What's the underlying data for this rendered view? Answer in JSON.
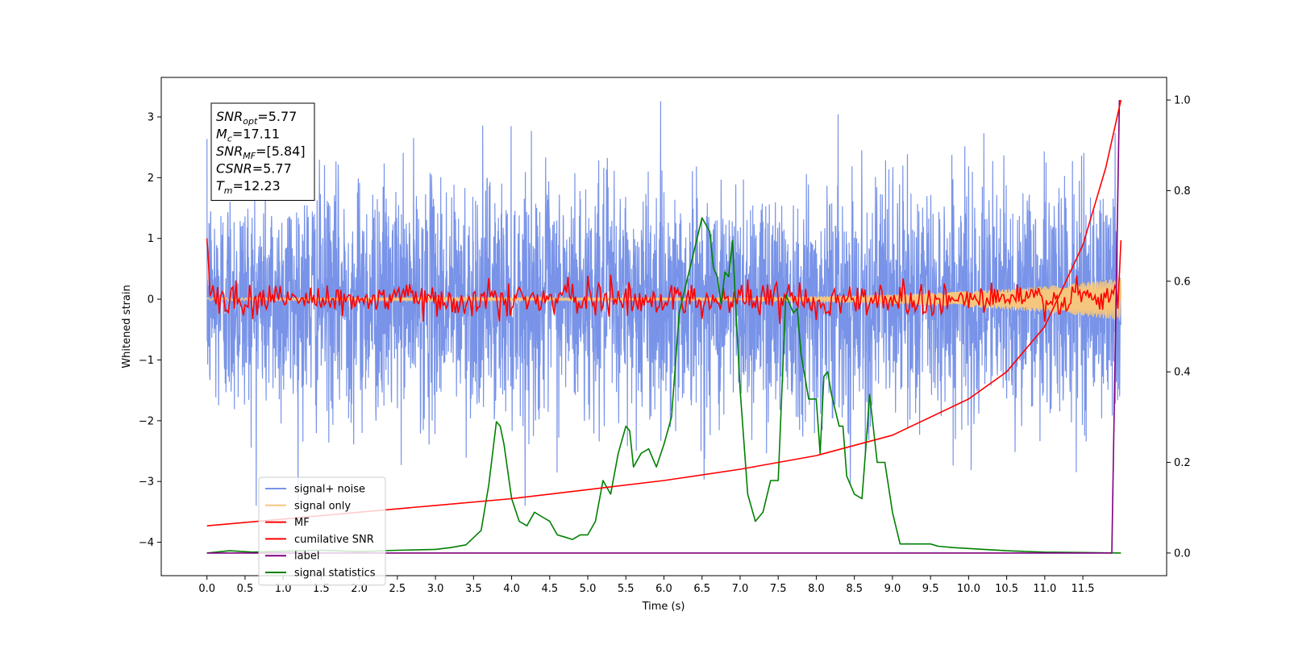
{
  "chart_data": {
    "type": "line",
    "xlabel": "Time (s)",
    "ylabel": "Whitened strain",
    "xlim": [
      -0.6,
      12.6
    ],
    "ylim": [
      -4.55,
      3.65
    ],
    "y2lim": [
      -0.05,
      1.05
    ],
    "x_ticks": [
      "0.0",
      "0.5",
      "1.0",
      "1.5",
      "2.0",
      "2.5",
      "3.0",
      "3.5",
      "4.0",
      "4.5",
      "5.0",
      "5.5",
      "6.0",
      "6.5",
      "7.0",
      "7.5",
      "8.0",
      "8.5",
      "9.0",
      "9.5",
      "10.0",
      "10.5",
      "11.0",
      "11.5"
    ],
    "y_ticks": [
      "3",
      "2",
      "1",
      "0",
      "−1",
      "−2",
      "−3",
      "−4"
    ],
    "y2_ticks": [
      "1.0",
      "0.8",
      "0.6",
      "0.4",
      "0.2",
      "0.0"
    ],
    "annotation": {
      "lines": [
        {
          "base": "SNR",
          "sub": "opt",
          "value": "=5.77"
        },
        {
          "base": "M",
          "sub": "c",
          "value": "=17.11"
        },
        {
          "base": "SNR",
          "sub": "MF",
          "value": "=[5.84]"
        },
        {
          "base": "CSNR",
          "sub": "",
          "value": "=5.77"
        },
        {
          "base": "T",
          "sub": "m",
          "value": "=12.23"
        }
      ]
    },
    "legend": {
      "placement": "lower-left",
      "entries": [
        {
          "label": "signal+ noise",
          "color": "#7893e8"
        },
        {
          "label": "signal only",
          "color": "#f5c77e"
        },
        {
          "label": "MF",
          "color": "#ff0000"
        },
        {
          "label": "cumilative SNR",
          "color": "#ff0000"
        },
        {
          "label": "label",
          "color": "#800080"
        },
        {
          "label": "signal statistics",
          "color": "#008000"
        }
      ]
    },
    "series": [
      {
        "name": "signal+ noise",
        "axis": "left",
        "color": "#7893e8",
        "t_range": [
          0.0,
          12.0
        ],
        "amplitude_std": 0.95,
        "amplitude_max": 3.4
      },
      {
        "name": "signal only",
        "axis": "left",
        "color": "#f5c77e",
        "t_range": [
          0.0,
          12.0
        ],
        "envelope_start": 0.02,
        "envelope_end": 0.35
      },
      {
        "name": "MF",
        "axis": "left",
        "color": "#ff0000",
        "t_range": [
          0.0,
          12.0
        ],
        "start_value": 1.0,
        "end_value": 0.97,
        "amplitude_std": 0.14
      },
      {
        "name": "cumilative SNR",
        "axis": "right",
        "color": "#ff0000",
        "x": [
          0.0,
          1.0,
          2.0,
          3.0,
          4.0,
          5.0,
          6.0,
          7.0,
          8.0,
          9.0,
          10.0,
          10.5,
          11.0,
          11.5,
          11.8,
          12.0
        ],
        "y": [
          0.06,
          0.075,
          0.09,
          0.105,
          0.12,
          0.14,
          0.16,
          0.185,
          0.215,
          0.26,
          0.34,
          0.4,
          0.5,
          0.68,
          0.85,
          1.0
        ]
      },
      {
        "name": "label",
        "axis": "right",
        "color": "#800080",
        "x": [
          0.0,
          11.88,
          11.98
        ],
        "y": [
          0.0,
          0.0,
          1.0
        ]
      },
      {
        "name": "signal statistics",
        "axis": "right",
        "color": "#008000",
        "x": [
          0.0,
          0.3,
          0.6,
          1.0,
          1.5,
          2.0,
          2.5,
          3.0,
          3.2,
          3.4,
          3.6,
          3.7,
          3.8,
          3.85,
          3.9,
          4.0,
          4.1,
          4.2,
          4.3,
          4.4,
          4.5,
          4.6,
          4.7,
          4.8,
          4.9,
          5.0,
          5.1,
          5.2,
          5.3,
          5.4,
          5.5,
          5.55,
          5.6,
          5.7,
          5.8,
          5.9,
          6.0,
          6.1,
          6.2,
          6.3,
          6.4,
          6.5,
          6.6,
          6.65,
          6.7,
          6.75,
          6.8,
          6.85,
          6.9,
          6.95,
          7.0,
          7.1,
          7.2,
          7.3,
          7.4,
          7.5,
          7.6,
          7.7,
          7.75,
          7.8,
          7.9,
          8.0,
          8.05,
          8.1,
          8.15,
          8.2,
          8.3,
          8.35,
          8.4,
          8.5,
          8.6,
          8.65,
          8.7,
          8.8,
          8.9,
          9.0,
          9.1,
          9.2,
          9.3,
          9.4,
          9.5,
          9.6,
          9.8,
          10.0,
          10.2,
          10.5,
          11.0,
          11.5,
          12.0
        ],
        "y": [
          0.0,
          0.005,
          0.002,
          0.004,
          0.006,
          0.003,
          0.006,
          0.008,
          0.012,
          0.018,
          0.05,
          0.15,
          0.29,
          0.28,
          0.24,
          0.12,
          0.07,
          0.06,
          0.09,
          0.08,
          0.07,
          0.04,
          0.035,
          0.03,
          0.04,
          0.04,
          0.07,
          0.16,
          0.13,
          0.22,
          0.28,
          0.27,
          0.19,
          0.22,
          0.23,
          0.19,
          0.24,
          0.3,
          0.53,
          0.6,
          0.67,
          0.74,
          0.71,
          0.63,
          0.61,
          0.55,
          0.62,
          0.61,
          0.69,
          0.52,
          0.36,
          0.13,
          0.07,
          0.09,
          0.16,
          0.16,
          0.57,
          0.53,
          0.54,
          0.44,
          0.34,
          0.34,
          0.22,
          0.39,
          0.4,
          0.35,
          0.28,
          0.28,
          0.17,
          0.13,
          0.12,
          0.23,
          0.35,
          0.2,
          0.2,
          0.09,
          0.02,
          0.02,
          0.02,
          0.02,
          0.02,
          0.015,
          0.012,
          0.01,
          0.008,
          0.005,
          0.002,
          0.001,
          0.0
        ]
      }
    ]
  }
}
